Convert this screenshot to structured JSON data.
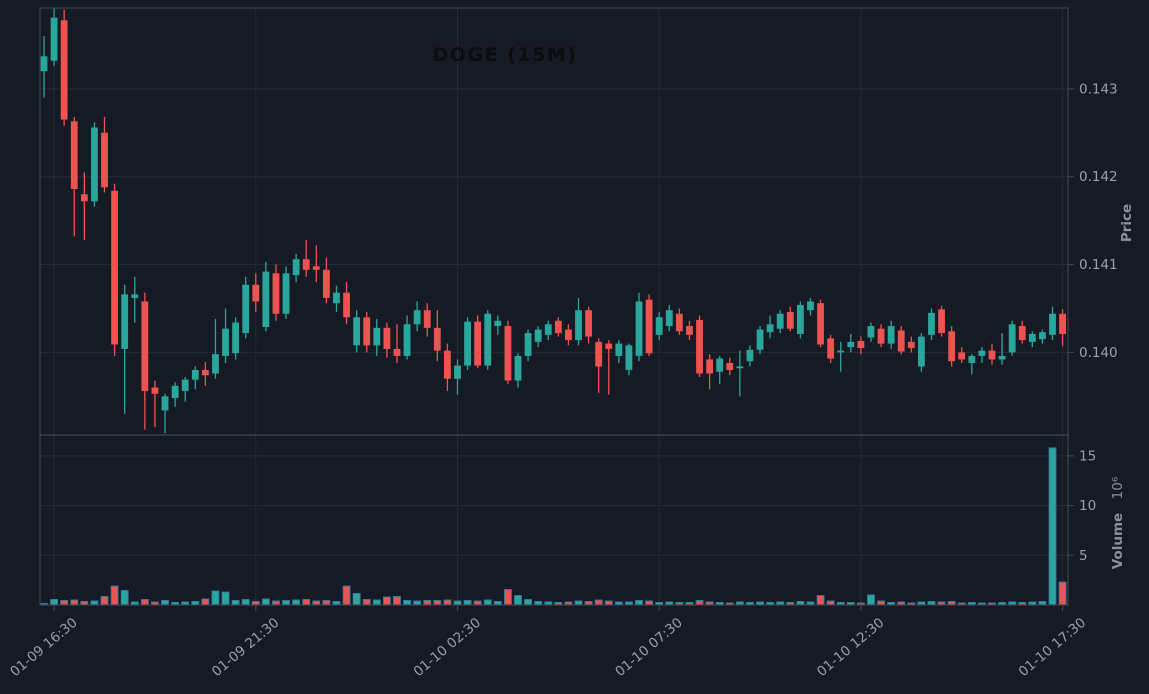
{
  "chart_data": {
    "type": "candlestick",
    "title": "DOGE (15M)",
    "symbol": "DOGE",
    "interval": "15M",
    "legend_position": "none",
    "grid": true,
    "price_axis": {
      "label": "Price",
      "side": "right",
      "ticks": [
        0.14,
        0.141,
        0.142,
        0.143
      ],
      "ylim": [
        0.13906,
        0.14392
      ]
    },
    "volume_axis": {
      "label": "Volume",
      "scale_label": "10⁶",
      "side": "right",
      "ticks": [
        5,
        10,
        15
      ],
      "ylim": [
        0,
        16.9
      ]
    },
    "x_axis": {
      "tick_labels": [
        "01-09 16:30",
        "01-09 21:30",
        "01-10 02:30",
        "01-10 07:30",
        "01-10 12:30",
        "01-10 17:30"
      ],
      "tick_indices": [
        1,
        21,
        41,
        61,
        81,
        101
      ],
      "rotation_deg": -40
    },
    "colors": {
      "up": "#2aa79d",
      "down": "#ef5350",
      "background": "#161a24",
      "grid": "#252a36",
      "spine": "#3e4350",
      "tick_label": "#9aa0ab",
      "axis_label": "#8a909c",
      "title": "#0b0c0e",
      "volume_edge": "#357ca5"
    },
    "candles_format": [
      "open",
      "high",
      "low",
      "close",
      "volume_millions"
    ],
    "candles": [
      [
        0.1432,
        0.1436,
        0.1429,
        0.14337,
        0.15
      ],
      [
        0.14332,
        0.14392,
        0.14326,
        0.14381,
        0.55
      ],
      [
        0.14378,
        0.1439,
        0.14258,
        0.14265,
        0.45
      ],
      [
        0.14263,
        0.14268,
        0.14132,
        0.14186,
        0.5
      ],
      [
        0.1418,
        0.14205,
        0.14128,
        0.14172,
        0.35
      ],
      [
        0.14172,
        0.14262,
        0.14166,
        0.14256,
        0.4
      ],
      [
        0.1425,
        0.14268,
        0.14182,
        0.14188,
        0.85
      ],
      [
        0.14184,
        0.14192,
        0.13996,
        0.14009,
        1.9
      ],
      [
        0.14004,
        0.14077,
        0.1393,
        0.14066,
        1.45
      ],
      [
        0.14062,
        0.14086,
        0.14034,
        0.14066,
        0.3
      ],
      [
        0.14058,
        0.14068,
        0.13912,
        0.13956,
        0.55
      ],
      [
        0.1396,
        0.13968,
        0.13915,
        0.13953,
        0.3
      ],
      [
        0.13934,
        0.13953,
        0.13908,
        0.1395,
        0.45
      ],
      [
        0.13948,
        0.13966,
        0.13938,
        0.13962,
        0.25
      ],
      [
        0.13956,
        0.13972,
        0.13944,
        0.13969,
        0.3
      ],
      [
        0.13969,
        0.13984,
        0.13958,
        0.1398,
        0.35
      ],
      [
        0.1398,
        0.13989,
        0.13962,
        0.13974,
        0.6
      ],
      [
        0.13976,
        0.14038,
        0.1397,
        0.13998,
        1.4
      ],
      [
        0.13996,
        0.1405,
        0.13988,
        0.14027,
        1.3
      ],
      [
        0.13999,
        0.1404,
        0.13992,
        0.14034,
        0.45
      ],
      [
        0.14022,
        0.14086,
        0.14016,
        0.14077,
        0.55
      ],
      [
        0.14077,
        0.1409,
        0.14046,
        0.14058,
        0.35
      ],
      [
        0.14029,
        0.14103,
        0.14024,
        0.14092,
        0.6
      ],
      [
        0.1409,
        0.141,
        0.14036,
        0.14044,
        0.4
      ],
      [
        0.14044,
        0.14098,
        0.14038,
        0.1409,
        0.45
      ],
      [
        0.14088,
        0.14112,
        0.1408,
        0.14106,
        0.5
      ],
      [
        0.14106,
        0.14128,
        0.14086,
        0.14094,
        0.55
      ],
      [
        0.14098,
        0.14122,
        0.1408,
        0.14094,
        0.4
      ],
      [
        0.14094,
        0.14108,
        0.14056,
        0.14062,
        0.45
      ],
      [
        0.14056,
        0.14076,
        0.14046,
        0.14068,
        0.35
      ],
      [
        0.14068,
        0.1408,
        0.14032,
        0.1404,
        1.9
      ],
      [
        0.14008,
        0.14048,
        0.14,
        0.1404,
        1.15
      ],
      [
        0.1404,
        0.14046,
        0.14,
        0.14008,
        0.55
      ],
      [
        0.14008,
        0.14038,
        0.13996,
        0.14028,
        0.5
      ],
      [
        0.14028,
        0.14034,
        0.13994,
        0.14004,
        0.8
      ],
      [
        0.14004,
        0.14032,
        0.13988,
        0.13996,
        0.85
      ],
      [
        0.13996,
        0.14042,
        0.13992,
        0.14032,
        0.45
      ],
      [
        0.14032,
        0.14058,
        0.14024,
        0.14048,
        0.4
      ],
      [
        0.14048,
        0.14056,
        0.14018,
        0.14028,
        0.45
      ],
      [
        0.14028,
        0.14048,
        0.1399,
        0.14002,
        0.45
      ],
      [
        0.14002,
        0.1401,
        0.13956,
        0.1397,
        0.5
      ],
      [
        0.1397,
        0.13992,
        0.13952,
        0.13985,
        0.4
      ],
      [
        0.13985,
        0.1404,
        0.1398,
        0.14035,
        0.45
      ],
      [
        0.14035,
        0.14042,
        0.13982,
        0.13985,
        0.4
      ],
      [
        0.13985,
        0.14048,
        0.1398,
        0.14044,
        0.5
      ],
      [
        0.1403,
        0.14042,
        0.1402,
        0.14036,
        0.35
      ],
      [
        0.1403,
        0.14036,
        0.13964,
        0.13968,
        1.55
      ],
      [
        0.13968,
        0.13999,
        0.1396,
        0.13996,
        0.95
      ],
      [
        0.13996,
        0.14026,
        0.1399,
        0.14022,
        0.55
      ],
      [
        0.14012,
        0.1403,
        0.14006,
        0.14026,
        0.35
      ],
      [
        0.1402,
        0.14036,
        0.14014,
        0.14032,
        0.3
      ],
      [
        0.14036,
        0.1404,
        0.14018,
        0.14022,
        0.25
      ],
      [
        0.14026,
        0.14032,
        0.14008,
        0.14014,
        0.3
      ],
      [
        0.14014,
        0.14062,
        0.14008,
        0.14048,
        0.4
      ],
      [
        0.14048,
        0.14052,
        0.1401,
        0.14018,
        0.35
      ],
      [
        0.14012,
        0.14016,
        0.13954,
        0.13984,
        0.5
      ],
      [
        0.1401,
        0.14014,
        0.13952,
        0.14004,
        0.4
      ],
      [
        0.13996,
        0.14014,
        0.13988,
        0.1401,
        0.3
      ],
      [
        0.1398,
        0.1401,
        0.13974,
        0.14008,
        0.3
      ],
      [
        0.13996,
        0.14068,
        0.1399,
        0.14058,
        0.45
      ],
      [
        0.1406,
        0.14066,
        0.13996,
        0.13999,
        0.4
      ],
      [
        0.1402,
        0.14046,
        0.14014,
        0.1404,
        0.25
      ],
      [
        0.1403,
        0.14054,
        0.14024,
        0.14048,
        0.3
      ],
      [
        0.14044,
        0.1405,
        0.1402,
        0.14024,
        0.25
      ],
      [
        0.1403,
        0.14036,
        0.14014,
        0.1402,
        0.25
      ],
      [
        0.14037,
        0.14042,
        0.13972,
        0.13976,
        0.45
      ],
      [
        0.13992,
        0.13998,
        0.13958,
        0.13976,
        0.3
      ],
      [
        0.13978,
        0.13996,
        0.13964,
        0.13993,
        0.25
      ],
      [
        0.13988,
        0.13994,
        0.13974,
        0.1398,
        0.2
      ],
      [
        0.13982,
        0.14002,
        0.1395,
        0.13984,
        0.3
      ],
      [
        0.1399,
        0.14008,
        0.13984,
        0.14003,
        0.25
      ],
      [
        0.14003,
        0.1403,
        0.13998,
        0.14026,
        0.3
      ],
      [
        0.14023,
        0.14042,
        0.14016,
        0.14032,
        0.25
      ],
      [
        0.14027,
        0.14048,
        0.14022,
        0.14044,
        0.3
      ],
      [
        0.14046,
        0.14052,
        0.14024,
        0.14027,
        0.25
      ],
      [
        0.14021,
        0.14058,
        0.14016,
        0.14054,
        0.35
      ],
      [
        0.14048,
        0.14062,
        0.14042,
        0.14058,
        0.3
      ],
      [
        0.14056,
        0.1406,
        0.14006,
        0.14009,
        0.95
      ],
      [
        0.14016,
        0.1402,
        0.13988,
        0.13993,
        0.4
      ],
      [
        0.14,
        0.14012,
        0.13978,
        0.14002,
        0.25
      ],
      [
        0.14006,
        0.14021,
        0.14,
        0.14012,
        0.25
      ],
      [
        0.14013,
        0.14018,
        0.13998,
        0.14005,
        0.2
      ],
      [
        0.14017,
        0.14034,
        0.14012,
        0.1403,
        1.0
      ],
      [
        0.14027,
        0.14032,
        0.14006,
        0.1401,
        0.4
      ],
      [
        0.1401,
        0.14036,
        0.14004,
        0.1403,
        0.25
      ],
      [
        0.14025,
        0.1403,
        0.13998,
        0.14001,
        0.3
      ],
      [
        0.14012,
        0.14018,
        0.14,
        0.14005,
        0.2
      ],
      [
        0.13984,
        0.14022,
        0.13978,
        0.14018,
        0.3
      ],
      [
        0.1402,
        0.1405,
        0.14014,
        0.14045,
        0.35
      ],
      [
        0.14049,
        0.14053,
        0.14018,
        0.14022,
        0.3
      ],
      [
        0.14024,
        0.1403,
        0.13984,
        0.1399,
        0.35
      ],
      [
        0.14,
        0.14006,
        0.13988,
        0.13992,
        0.2
      ],
      [
        0.13988,
        0.13998,
        0.13975,
        0.13996,
        0.25
      ],
      [
        0.13996,
        0.14006,
        0.13988,
        0.14002,
        0.2
      ],
      [
        0.14002,
        0.1401,
        0.13986,
        0.13992,
        0.2
      ],
      [
        0.13992,
        0.14022,
        0.13986,
        0.13996,
        0.25
      ],
      [
        0.14,
        0.14036,
        0.13996,
        0.14032,
        0.3
      ],
      [
        0.1403,
        0.14036,
        0.1401,
        0.14014,
        0.25
      ],
      [
        0.14012,
        0.14024,
        0.14006,
        0.14021,
        0.3
      ],
      [
        0.14015,
        0.14026,
        0.1401,
        0.14023,
        0.35
      ],
      [
        0.1402,
        0.14052,
        0.14014,
        0.14044,
        15.8
      ],
      [
        0.14044,
        0.14049,
        0.14007,
        0.14021,
        2.3
      ]
    ]
  }
}
